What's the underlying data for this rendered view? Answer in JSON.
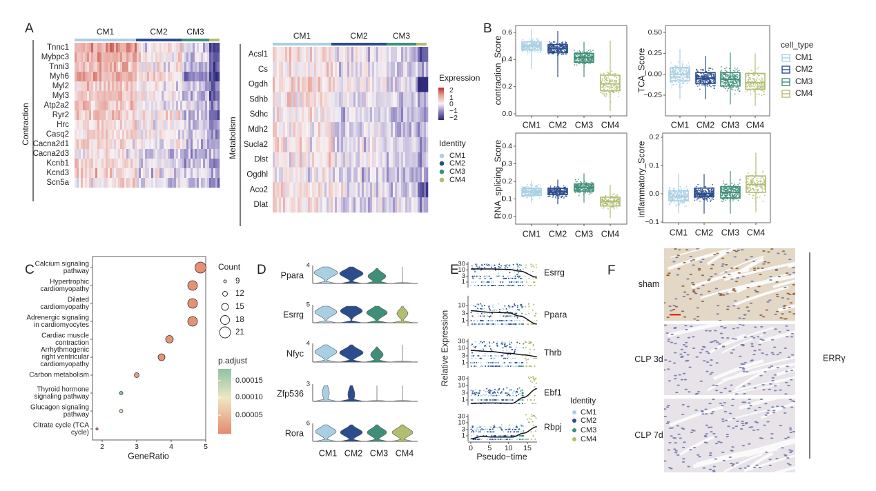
{
  "panel_labels": {
    "a": "A",
    "b": "B",
    "c": "C",
    "d": "D",
    "e": "E",
    "f": "F"
  },
  "colors": {
    "CM1": "#a9cfe3",
    "CM2": "#2c4c8c",
    "CM3": "#3f8f78",
    "CM4": "#b2bd72",
    "heat_low": "#2d2a7a",
    "heat_mid": "#f7f2f5",
    "heat_high": "#b8322e",
    "padj_high": "#8fc3a2",
    "padj_mid": "#efe6c4",
    "padj_low": "#e58a6e",
    "scale_bar": "#e0321e"
  },
  "heatmap_left": {
    "type": "heatmap",
    "group_label": "Contraction",
    "column_groups": [
      "CM1",
      "CM2",
      "CM3"
    ],
    "genes": [
      "Tnnc1",
      "Mybpc3",
      "Tnni3",
      "Myh6",
      "Myl2",
      "Myl3",
      "Atp2a2",
      "Ryr2",
      "Hrc",
      "Casq2",
      "Cacna2d1",
      "Cacna2d3",
      "Kcnb1",
      "Kcnd3",
      "Scn5a"
    ]
  },
  "heatmap_right": {
    "type": "heatmap",
    "group_label": "Metabolism",
    "column_groups": [
      "CM1",
      "CM2",
      "CM3"
    ],
    "genes": [
      "Acsl1",
      "Cs",
      "Ogdh",
      "Sdhb",
      "Sdhc",
      "Mdh2",
      "Sucla2",
      "Dlst",
      "Ogdhl",
      "Aco2",
      "Dlat"
    ]
  },
  "expression_legend": {
    "title": "Expression",
    "ticks": [
      "2",
      "1",
      "0",
      "−1",
      "−2"
    ]
  },
  "identity_legend": {
    "title": "Identity",
    "items": [
      "CM1",
      "CM2",
      "CM3",
      "CM4"
    ]
  },
  "chart_data": [
    {
      "id": "contraction",
      "type": "box",
      "ylabel": "contraction_Score",
      "categories": [
        "CM1",
        "CM2",
        "CM3",
        "CM4"
      ],
      "yticks": [
        "0.0",
        "0.2",
        "0.4",
        "0.6"
      ],
      "ytick_values": [
        0,
        0.2,
        0.4,
        0.6
      ],
      "stats": [
        {
          "min": 0.33,
          "q1": 0.47,
          "median": 0.5,
          "q3": 0.53,
          "max": 0.62
        },
        {
          "min": 0.27,
          "q1": 0.45,
          "median": 0.48,
          "q3": 0.51,
          "max": 0.61
        },
        {
          "min": 0.27,
          "q1": 0.38,
          "median": 0.415,
          "q3": 0.445,
          "max": 0.53
        },
        {
          "min": 0.02,
          "q1": 0.17,
          "median": 0.22,
          "q3": 0.285,
          "max": 0.54
        }
      ]
    },
    {
      "id": "tca",
      "type": "box",
      "ylabel": "TCA_Score",
      "categories": [
        "CM1",
        "CM2",
        "CM3",
        "CM4"
      ],
      "yticks": [
        "−0.25",
        "0.00",
        "0.25",
        "0.50"
      ],
      "ytick_values": [
        -0.25,
        0,
        0.25,
        0.5
      ],
      "legend": {
        "title": "cell_type",
        "items": [
          "CM1",
          "CM2",
          "CM3",
          "CM4"
        ],
        "placement": "right"
      },
      "stats": [
        {
          "min": -0.3,
          "q1": -0.08,
          "median": 0.0,
          "q3": 0.08,
          "max": 0.3
        },
        {
          "min": -0.3,
          "q1": -0.11,
          "median": -0.05,
          "q3": 0.02,
          "max": 0.22
        },
        {
          "min": -0.36,
          "q1": -0.14,
          "median": -0.06,
          "q3": 0.02,
          "max": 0.26
        },
        {
          "min": -0.38,
          "q1": -0.18,
          "median": -0.1,
          "q3": 0.01,
          "max": 0.25
        }
      ]
    },
    {
      "id": "rna",
      "type": "box",
      "ylabel": "RNA_splicing_Score",
      "categories": [
        "CM1",
        "CM2",
        "CM3",
        "CM4"
      ],
      "yticks": [
        "0.0",
        "0.1",
        "0.2",
        "0.3",
        "0.4"
      ],
      "ytick_values": [
        0,
        0.1,
        0.2,
        0.3,
        0.4
      ],
      "stats": [
        {
          "min": 0.08,
          "q1": 0.12,
          "median": 0.14,
          "q3": 0.16,
          "max": 0.2
        },
        {
          "min": 0.07,
          "q1": 0.125,
          "median": 0.14,
          "q3": 0.16,
          "max": 0.21
        },
        {
          "min": 0.08,
          "q1": 0.145,
          "median": 0.165,
          "q3": 0.185,
          "max": 0.245
        },
        {
          "min": -0.01,
          "q1": 0.06,
          "median": 0.085,
          "q3": 0.11,
          "max": 0.18
        }
      ]
    },
    {
      "id": "inflammatory",
      "type": "box",
      "ylabel": "inflammatory_Score",
      "categories": [
        "CM1",
        "CM2",
        "CM3",
        "CM4"
      ],
      "yticks": [
        "−0.1",
        "0.0",
        "0.1",
        "0.2"
      ],
      "ytick_values": [
        -0.1,
        0,
        0.1,
        0.2
      ],
      "stats": [
        {
          "min": -0.07,
          "q1": -0.025,
          "median": -0.01,
          "q3": 0.01,
          "max": 0.07
        },
        {
          "min": -0.07,
          "q1": -0.01,
          "median": 0.0,
          "q3": 0.02,
          "max": 0.07
        },
        {
          "min": -0.07,
          "q1": -0.015,
          "median": 0.005,
          "q3": 0.025,
          "max": 0.08
        },
        {
          "min": -0.065,
          "q1": 0.005,
          "median": 0.033,
          "q3": 0.063,
          "max": 0.145
        }
      ]
    },
    {
      "id": "kegg",
      "type": "scatter",
      "xlabel": "GeneRatio",
      "xticks": [
        "2",
        "3",
        "4",
        "5"
      ],
      "xtick_values": [
        2,
        3,
        4,
        5
      ],
      "terms": [
        {
          "label": [
            "Calcium signaling",
            "pathway"
          ],
          "gene_ratio": 4.85,
          "count": 21,
          "p_adjust": 5e-06
        },
        {
          "label": [
            "Hypertrophic",
            "cardiomyopathy"
          ],
          "gene_ratio": 4.62,
          "count": 19,
          "p_adjust": 8e-06
        },
        {
          "label": [
            "Dilated",
            "cardiomyopathy"
          ],
          "gene_ratio": 4.62,
          "count": 19,
          "p_adjust": 8e-06
        },
        {
          "label": [
            "Adrenergic signaling",
            "in cardiomyocytes"
          ],
          "gene_ratio": 4.62,
          "count": 19,
          "p_adjust": 8e-06
        },
        {
          "label": [
            "Cardiac muscle",
            "contraction"
          ],
          "gene_ratio": 3.95,
          "count": 16,
          "p_adjust": 1e-05
        },
        {
          "label": [
            "Arrhythmogenic",
            "right ventricular",
            "cardiomyopathy"
          ],
          "gene_ratio": 3.72,
          "count": 15,
          "p_adjust": 1e-05
        },
        {
          "label": [
            "Carbon metabolism"
          ],
          "gene_ratio": 3.0,
          "count": 12,
          "p_adjust": 2e-05
        },
        {
          "label": [
            "Thyroid hormone",
            "signaling pathway"
          ],
          "gene_ratio": 2.55,
          "count": 10,
          "p_adjust": 0.00016
        },
        {
          "label": [
            "Glucagon signaling",
            "pathway"
          ],
          "gene_ratio": 2.55,
          "count": 10,
          "p_adjust": 8e-05
        },
        {
          "label": [
            "Citrate cycle (TCA",
            "cycle)"
          ],
          "gene_ratio": 1.85,
          "count": 6,
          "p_adjust": 1e-05
        }
      ],
      "size_legend": {
        "title": "Count",
        "items": [
          "9",
          "12",
          "15",
          "18",
          "21"
        ],
        "values": [
          9,
          12,
          15,
          18,
          21
        ]
      },
      "color_legend": {
        "title": "p.adjust",
        "ticks": [
          "0.00015",
          "0.00010",
          "0.00005"
        ],
        "values": [
          0.00015,
          0.0001,
          5e-05
        ]
      }
    },
    {
      "id": "violin",
      "type": "violin",
      "categories": [
        "CM1",
        "CM2",
        "CM3",
        "CM4"
      ],
      "genes": [
        {
          "name": "Ppara",
          "ymax": "4",
          "levels": [
            2.4,
            2.2,
            1.6,
            0
          ]
        },
        {
          "name": "Esrrg",
          "ymax": "5",
          "levels": [
            3.0,
            3.3,
            2.8,
            2.6
          ]
        },
        {
          "name": "Nfyc",
          "ymax": "4",
          "levels": [
            2.2,
            2.0,
            1.6,
            0
          ]
        },
        {
          "name": "Zfp536",
          "ymax": "3",
          "levels": [
            1.5,
            1.2,
            0,
            0
          ]
        },
        {
          "name": "Rora",
          "ymax": "6",
          "levels": [
            3.3,
            3.0,
            3.0,
            3.0
          ]
        }
      ]
    },
    {
      "id": "pseudotime",
      "type": "scatter",
      "xlabel": "Pseudo−time",
      "ylabel": "Relative Expression",
      "y_scale": "log",
      "xticks": [
        "0",
        "5",
        "10",
        "15"
      ],
      "xtick_values": [
        0,
        5,
        10,
        15
      ],
      "legend": {
        "title": "Identity",
        "items": [
          "CM1",
          "CM2",
          "CM3",
          "CM4"
        ],
        "placement": "right"
      },
      "genes": [
        {
          "name": "Esrrg",
          "yticks": [
            "1",
            "3",
            "10",
            "30"
          ],
          "trend": [
            [
              0,
              12
            ],
            [
              5,
              12
            ],
            [
              10,
              11
            ],
            [
              13,
              8
            ],
            [
              17.5,
              2.5
            ]
          ]
        },
        {
          "name": "Ppara",
          "yticks": [
            "1",
            "3",
            "10"
          ],
          "trend": [
            [
              0,
              4.5
            ],
            [
              5,
              3.6
            ],
            [
              10,
              3.3
            ],
            [
              13,
              2
            ],
            [
              17.5,
              0.6
            ]
          ]
        },
        {
          "name": "Thrb",
          "yticks": [
            "1",
            "3",
            "10",
            "30"
          ],
          "trend": [
            [
              0,
              7
            ],
            [
              5,
              6
            ],
            [
              10,
              4.5
            ],
            [
              14,
              3.5
            ],
            [
              17.5,
              2.7
            ]
          ]
        },
        {
          "name": "Ebf1",
          "yticks": [
            "1",
            "3",
            "10",
            "30"
          ],
          "trend": [
            [
              0,
              0.6
            ],
            [
              5,
              0.62
            ],
            [
              11,
              0.6
            ],
            [
              14,
              1.5
            ],
            [
              17.5,
              6
            ]
          ]
        },
        {
          "name": "Rbpj",
          "yticks": [
            "1",
            "3",
            "10",
            "30"
          ],
          "trend": [
            [
              0,
              0.6
            ],
            [
              3,
              0.9
            ],
            [
              6,
              0.8
            ],
            [
              11,
              0.8
            ],
            [
              14,
              1.6
            ],
            [
              17.5,
              5
            ]
          ]
        }
      ]
    }
  ],
  "panel_f": {
    "conditions": [
      "sham",
      "CLP 3d",
      "CLP 7d"
    ],
    "stain_label": "ERRγ"
  }
}
